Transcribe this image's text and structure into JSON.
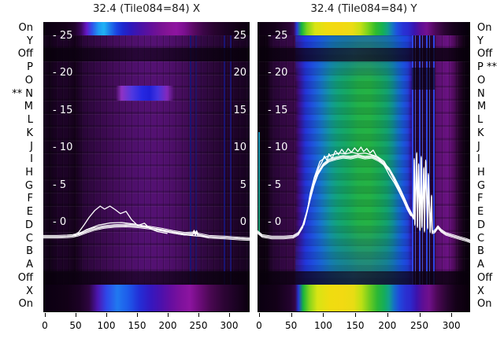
{
  "window": {
    "background": "#ffffff",
    "trace_color": "#ffffff"
  },
  "row_labels": [
    "On",
    "Y",
    "Off",
    "P",
    "O",
    "N",
    "M",
    "L",
    "K",
    "J",
    "I",
    "H",
    "G",
    "F",
    "E",
    "D",
    "C",
    "B",
    "A",
    "Off",
    "X",
    "On"
  ],
  "flags": {
    "symbol": "**",
    "left_panel_flagged_row": "N",
    "right_panel_flagged_row": "P"
  },
  "db_axis": {
    "ticks": [
      {
        "value": -25,
        "label": "- 25",
        "edge_label": "25"
      },
      {
        "value": -20,
        "label": "- 20",
        "edge_label": "20"
      },
      {
        "value": -15,
        "label": "- 15",
        "edge_label": "15"
      },
      {
        "value": -10,
        "label": "- 10",
        "edge_label": "10"
      },
      {
        "value": -5,
        "label": "- 5",
        "edge_label": "5"
      },
      {
        "value": 0,
        "label": "- 0",
        "edge_label": "0"
      }
    ]
  },
  "x_axis": {
    "ticks": [
      0,
      50,
      100,
      150,
      200,
      250,
      300
    ],
    "range": [
      0,
      333
    ]
  },
  "palette": {
    "deep_purple": "#4a0e64",
    "magenta": "#8c14a0",
    "bright_blue": "#1f7bf0",
    "cyan": "#1fb2f4",
    "navy": "#1c24cc",
    "teal": "#12a478",
    "green": "#24b244",
    "yellow": "#f0dc10",
    "black": "#060008",
    "trace": "#ffffff"
  },
  "chart_data": [
    {
      "type": "heatmap",
      "title": "32.4 (Tile084=84) X",
      "xlabel": "",
      "x_ticks": [
        0,
        50,
        100,
        150,
        200,
        250,
        300
      ],
      "x_range": [
        0,
        333
      ],
      "y_rows": [
        "On",
        "Y",
        "Off",
        "P",
        "O",
        "N",
        "M",
        "L",
        "K",
        "J",
        "I",
        "H",
        "G",
        "F",
        "E",
        "D",
        "C",
        "B",
        "A",
        "Off",
        "X",
        "On"
      ],
      "flagged_row": "N",
      "db_ticks": [
        -25,
        -20,
        -15,
        -10,
        -5,
        0
      ],
      "heat_regions": [
        {
          "row": "On (top)",
          "channels": "55-250",
          "desc": "purple-cyan-blue-magenta band"
        },
        {
          "row": "Off rows",
          "channels": "all",
          "desc": "near black"
        },
        {
          "row": "N (flagged)",
          "channels": "45-140",
          "desc": "bright blue streak"
        },
        {
          "row": "X/On (bottom)",
          "channels": "60-260",
          "desc": "purple-blue-magenta band"
        },
        {
          "row": "middle rows",
          "channels": "70-230",
          "desc": "brighter purple column"
        }
      ],
      "series": [
        {
          "name": "trace-bundle",
          "bundle": true,
          "points": [
            [
              -3,
              1.9
            ],
            [
              20,
              1.9
            ],
            [
              36,
              1.85
            ],
            [
              45,
              1.8
            ],
            [
              55,
              1.6
            ],
            [
              68,
              1.2
            ],
            [
              81,
              0.85
            ],
            [
              96,
              0.6
            ],
            [
              113,
              0.45
            ],
            [
              132,
              0.4
            ],
            [
              151,
              0.5
            ],
            [
              171,
              0.7
            ],
            [
              190,
              0.95
            ],
            [
              209,
              1.25
            ],
            [
              228,
              1.5
            ],
            [
              238,
              1.45
            ],
            [
              241,
              1.45
            ],
            [
              243,
              1.2
            ],
            [
              245,
              1.55
            ],
            [
              247,
              1.25
            ],
            [
              249,
              1.6
            ],
            [
              255,
              1.7
            ],
            [
              267,
              1.9
            ],
            [
              292,
              2.0
            ],
            [
              318,
              2.15
            ],
            [
              333,
              2.2
            ]
          ]
        },
        {
          "name": "trace-mid",
          "points": [
            [
              49,
              1.8
            ],
            [
              68,
              0.95
            ],
            [
              87,
              0.35
            ],
            [
              106,
              0.05
            ],
            [
              125,
              0.0
            ],
            [
              145,
              0.2
            ],
            [
              164,
              0.5
            ],
            [
              183,
              0.9
            ],
            [
              202,
              1.3
            ],
            [
              222,
              1.6
            ],
            [
              247,
              1.8
            ],
            [
              273,
              1.95
            ],
            [
              311,
              2.1
            ],
            [
              333,
              2.2
            ]
          ]
        },
        {
          "name": "trace-outlier",
          "points": [
            [
              45,
              1.8
            ],
            [
              55,
              1.3
            ],
            [
              64,
              0.3
            ],
            [
              72,
              -0.7
            ],
            [
              81,
              -1.6
            ],
            [
              90,
              -2.2
            ],
            [
              97,
              -1.8
            ],
            [
              106,
              -2.2
            ],
            [
              115,
              -1.7
            ],
            [
              123,
              -1.2
            ],
            [
              132,
              -1.5
            ],
            [
              141,
              -0.4
            ],
            [
              151,
              0.4
            ],
            [
              162,
              0.1
            ],
            [
              171,
              0.8
            ],
            [
              183,
              1.2
            ],
            [
              199,
              1.45
            ]
          ]
        }
      ]
    },
    {
      "type": "heatmap",
      "title": "32.4 (Tile084=84) Y",
      "xlabel": "",
      "x_ticks": [
        0,
        50,
        100,
        150,
        200,
        250,
        300
      ],
      "x_range": [
        0,
        330
      ],
      "y_rows": [
        "On",
        "Y",
        "Off",
        "P",
        "O",
        "N",
        "M",
        "L",
        "K",
        "J",
        "I",
        "H",
        "G",
        "F",
        "E",
        "D",
        "C",
        "B",
        "A",
        "Off",
        "X",
        "On"
      ],
      "flagged_row": "P",
      "db_ticks": [
        -25,
        -20,
        -15,
        -10,
        -5,
        0
      ],
      "heat_regions": [
        {
          "row": "On (top)",
          "channels": "60-290",
          "desc": "green-yellow-green-blue-purple band"
        },
        {
          "row": "Off rows",
          "channels": "all",
          "desc": "near black"
        },
        {
          "row": "middle rows",
          "channels": "60-205",
          "desc": "bright blue-teal-green column"
        },
        {
          "row": "middle rows",
          "channels": "240-270",
          "desc": "thin bright blue vertical lines"
        },
        {
          "row": "X/On (bottom)",
          "channels": "60-290",
          "desc": "green-yellow-blue-purple band"
        }
      ],
      "series": [
        {
          "name": "trace-bundle",
          "bundle": true,
          "points": [
            [
              -2,
              1.3
            ],
            [
              5,
              1.8
            ],
            [
              20,
              2.0
            ],
            [
              38,
              2.0
            ],
            [
              53,
              1.9
            ],
            [
              61,
              1.5
            ],
            [
              68,
              0.5
            ],
            [
              74,
              -1.2
            ],
            [
              80,
              -3.3
            ],
            [
              86,
              -5.2
            ],
            [
              92,
              -6.6
            ],
            [
              100,
              -7.7
            ],
            [
              109,
              -8.3
            ],
            [
              120,
              -8.6
            ],
            [
              131,
              -8.8
            ],
            [
              143,
              -8.7
            ],
            [
              154,
              -8.9
            ],
            [
              165,
              -8.7
            ],
            [
              176,
              -8.8
            ],
            [
              186,
              -8.4
            ],
            [
              194,
              -7.9
            ],
            [
              203,
              -7.1
            ],
            [
              211,
              -5.9
            ],
            [
              220,
              -4.4
            ],
            [
              227,
              -3.1
            ],
            [
              233,
              -1.9
            ],
            [
              238,
              -1.1
            ],
            [
              241,
              -0.6
            ],
            [
              242,
              -8.4
            ],
            [
              243,
              0.2
            ],
            [
              246,
              -9.2
            ],
            [
              247,
              0.5
            ],
            [
              249,
              -7.7
            ],
            [
              251,
              0.9
            ],
            [
              253,
              -8.7
            ],
            [
              254,
              0.5
            ],
            [
              257,
              -7.2
            ],
            [
              258,
              1.1
            ],
            [
              260,
              -8.2
            ],
            [
              263,
              0.7
            ],
            [
              264,
              -6.4
            ],
            [
              267,
              1.2
            ],
            [
              269,
              -3.5
            ],
            [
              270,
              1.3
            ],
            [
              274,
              1.2
            ],
            [
              279,
              0.6
            ],
            [
              284,
              1.1
            ],
            [
              291,
              1.5
            ],
            [
              302,
              1.8
            ],
            [
              314,
              2.1
            ],
            [
              323,
              2.3
            ],
            [
              329,
              2.5
            ]
          ]
        },
        {
          "name": "trace-top",
          "points": [
            [
              80,
              -3.5
            ],
            [
              86,
              -5.8
            ],
            [
              92,
              -7.0
            ],
            [
              93,
              -7.3
            ],
            [
              98,
              -8.1
            ],
            [
              102,
              -8.9
            ],
            [
              106,
              -8.3
            ],
            [
              109,
              -9.2
            ],
            [
              114,
              -8.6
            ],
            [
              119,
              -9.6
            ],
            [
              124,
              -9.1
            ],
            [
              129,
              -9.8
            ],
            [
              134,
              -9.2
            ],
            [
              139,
              -9.9
            ],
            [
              144,
              -9.4
            ],
            [
              149,
              -10.0
            ],
            [
              154,
              -9.5
            ],
            [
              159,
              -10.1
            ],
            [
              163,
              -9.5
            ],
            [
              168,
              -9.9
            ],
            [
              173,
              -9.3
            ],
            [
              178,
              -9.7
            ],
            [
              183,
              -8.9
            ],
            [
              188,
              -8.5
            ],
            [
              193,
              -7.9
            ],
            [
              198,
              -7.2
            ],
            [
              203,
              -6.4
            ],
            [
              211,
              -5.3
            ],
            [
              219,
              -4.0
            ],
            [
              226,
              -2.8
            ],
            [
              232,
              -1.7
            ],
            [
              237,
              -0.9
            ]
          ]
        },
        {
          "name": "trace-mid",
          "points": [
            [
              70,
              0.3
            ],
            [
              75,
              -1.5
            ],
            [
              80,
              -4.0
            ],
            [
              86,
              -6.0
            ],
            [
              95,
              -8.2
            ],
            [
              105,
              -8.8
            ],
            [
              115,
              -9.1
            ],
            [
              125,
              -9.3
            ],
            [
              135,
              -9.2
            ],
            [
              145,
              -9.4
            ],
            [
              155,
              -9.2
            ],
            [
              165,
              -9.3
            ],
            [
              175,
              -9.1
            ],
            [
              185,
              -8.8
            ],
            [
              195,
              -8.2
            ],
            [
              203,
              -7.0
            ],
            [
              210,
              -5.8
            ],
            [
              218,
              -4.3
            ],
            [
              225,
              -3.0
            ],
            [
              231,
              -1.8
            ],
            [
              236,
              -1.0
            ]
          ]
        }
      ]
    }
  ]
}
